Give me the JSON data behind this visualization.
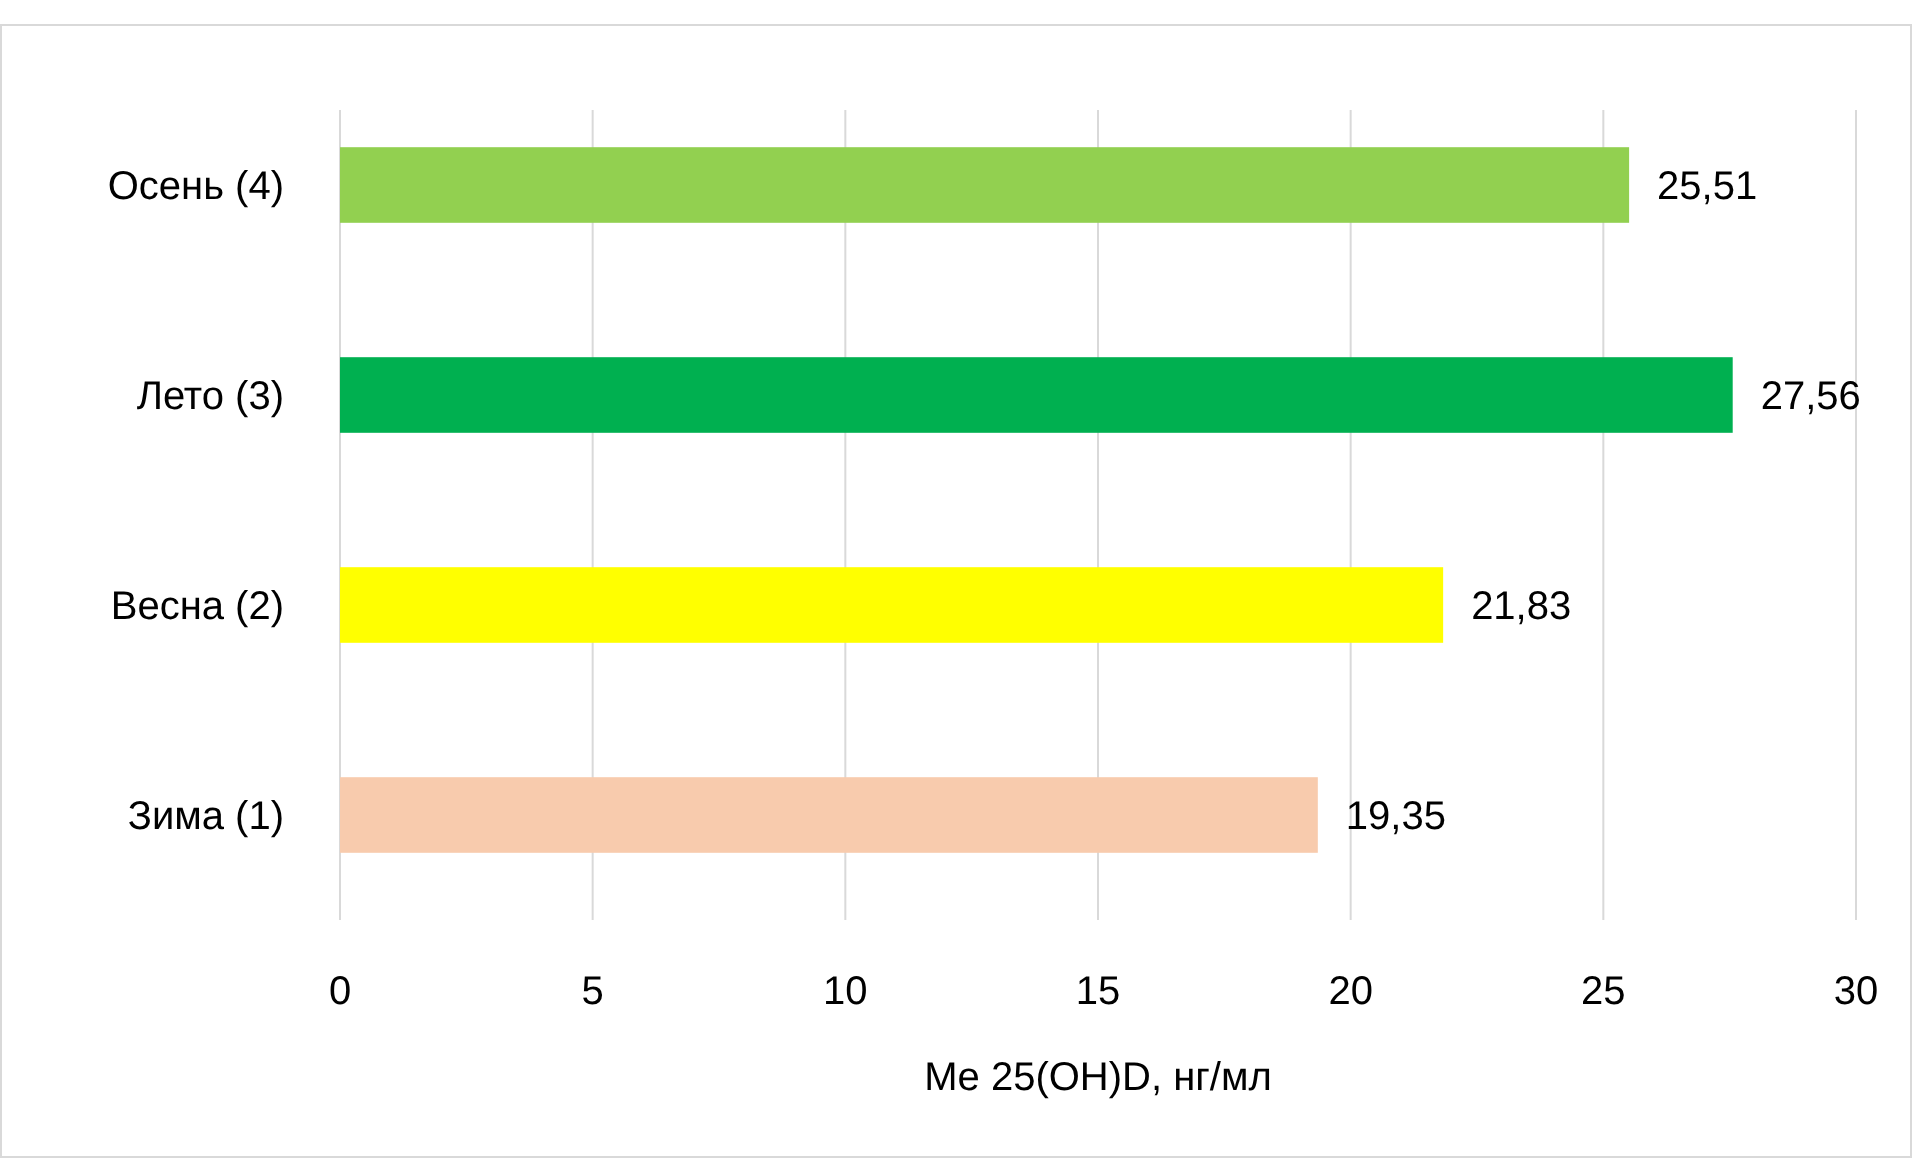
{
  "chart_data": {
    "type": "bar",
    "orientation": "horizontal",
    "xlabel": "Me 25(OH)D, нг/мл",
    "categories": [
      "Осень (4)",
      "Лето (3)",
      "Весна (2)",
      "Зима (1)"
    ],
    "values": [
      25.51,
      27.56,
      21.83,
      19.35
    ],
    "colors": [
      "#92d050",
      "#00b050",
      "#ffff00",
      "#f8cbad"
    ],
    "value_labels": [
      "25,51",
      "27,56",
      "21,83",
      "19,35"
    ],
    "xlim": [
      0,
      30
    ],
    "xticks": [
      0,
      5,
      10,
      15,
      20,
      25,
      30
    ],
    "grid": "x"
  }
}
